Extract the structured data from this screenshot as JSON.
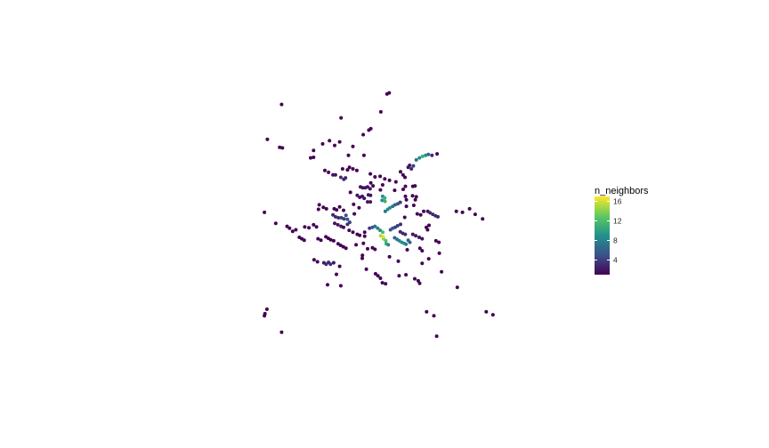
{
  "chart_data": {
    "type": "scatter",
    "title": "",
    "xlabel": "",
    "ylabel": "",
    "grid": false,
    "axes_visible": false,
    "legend": {
      "title": "n_neighbors",
      "placement": "right",
      "type": "colorbar",
      "ticks": [
        4,
        8,
        12,
        16
      ],
      "tick_labels": [
        "4",
        "8",
        "12",
        "16"
      ],
      "range": [
        1,
        17
      ],
      "colors": [
        "#440154",
        "#3b528b",
        "#21918c",
        "#5ec962",
        "#fde725"
      ]
    },
    "xlim": [
      0,
      100
    ],
    "ylim": [
      0,
      100
    ],
    "points": [
      {
        "x": 50.3,
        "y": 93.0,
        "v": 1
      },
      {
        "x": 51.2,
        "y": 93.4,
        "v": 1
      },
      {
        "x": 7.4,
        "y": 88.8,
        "v": 1
      },
      {
        "x": 47.8,
        "y": 85.8,
        "v": 1
      },
      {
        "x": 31.6,
        "y": 83.4,
        "v": 1
      },
      {
        "x": 42.9,
        "y": 78.5,
        "v": 1
      },
      {
        "x": 43.7,
        "y": 79.1,
        "v": 1
      },
      {
        "x": 40.6,
        "y": 76.7,
        "v": 1
      },
      {
        "x": 1.6,
        "y": 74.8,
        "v": 1
      },
      {
        "x": 26.9,
        "y": 74.3,
        "v": 1
      },
      {
        "x": 31.0,
        "y": 73.8,
        "v": 1
      },
      {
        "x": 24.1,
        "y": 73.0,
        "v": 1
      },
      {
        "x": 6.6,
        "y": 71.6,
        "v": 1
      },
      {
        "x": 7.7,
        "y": 71.4,
        "v": 1
      },
      {
        "x": 29.0,
        "y": 72.4,
        "v": 1
      },
      {
        "x": 36.4,
        "y": 72.0,
        "v": 1
      },
      {
        "x": 20.4,
        "y": 70.4,
        "v": 1
      },
      {
        "x": 34.6,
        "y": 68.4,
        "v": 1
      },
      {
        "x": 40.9,
        "y": 68.4,
        "v": 1
      },
      {
        "x": 19.2,
        "y": 67.4,
        "v": 1
      },
      {
        "x": 20.4,
        "y": 67.6,
        "v": 1
      },
      {
        "x": 62.2,
        "y": 66.6,
        "v": 7
      },
      {
        "x": 63.5,
        "y": 67.4,
        "v": 9
      },
      {
        "x": 64.8,
        "y": 68.0,
        "v": 11
      },
      {
        "x": 66.0,
        "y": 68.4,
        "v": 9
      },
      {
        "x": 67.1,
        "y": 68.8,
        "v": 6
      },
      {
        "x": 68.6,
        "y": 68.4,
        "v": 3
      },
      {
        "x": 70.7,
        "y": 69.0,
        "v": 1
      },
      {
        "x": 58.9,
        "y": 63.6,
        "v": 2
      },
      {
        "x": 59.5,
        "y": 64.4,
        "v": 2
      },
      {
        "x": 60.2,
        "y": 63.0,
        "v": 3
      },
      {
        "x": 61.0,
        "y": 64.2,
        "v": 4
      },
      {
        "x": 55.8,
        "y": 61.8,
        "v": 1
      },
      {
        "x": 56.8,
        "y": 60.6,
        "v": 1
      },
      {
        "x": 57.6,
        "y": 59.6,
        "v": 1
      },
      {
        "x": 25.0,
        "y": 62.4,
        "v": 1
      },
      {
        "x": 26.5,
        "y": 61.6,
        "v": 1
      },
      {
        "x": 32.2,
        "y": 63.0,
        "v": 1
      },
      {
        "x": 34.2,
        "y": 62.6,
        "v": 1
      },
      {
        "x": 35.0,
        "y": 63.6,
        "v": 1
      },
      {
        "x": 36.4,
        "y": 63.0,
        "v": 1
      },
      {
        "x": 38.0,
        "y": 62.4,
        "v": 1
      },
      {
        "x": 28.3,
        "y": 60.6,
        "v": 2
      },
      {
        "x": 29.3,
        "y": 60.6,
        "v": 2
      },
      {
        "x": 31.5,
        "y": 59.6,
        "v": 3
      },
      {
        "x": 32.7,
        "y": 58.8,
        "v": 3
      },
      {
        "x": 33.4,
        "y": 59.4,
        "v": 3
      },
      {
        "x": 43.5,
        "y": 61.0,
        "v": 1
      },
      {
        "x": 45.4,
        "y": 59.8,
        "v": 1
      },
      {
        "x": 47.5,
        "y": 60.0,
        "v": 1
      },
      {
        "x": 49.4,
        "y": 59.0,
        "v": 1
      },
      {
        "x": 51.3,
        "y": 58.4,
        "v": 1
      },
      {
        "x": 53.9,
        "y": 57.8,
        "v": 1
      },
      {
        "x": 43.7,
        "y": 57.4,
        "v": 1
      },
      {
        "x": 44.6,
        "y": 56.2,
        "v": 1
      },
      {
        "x": 48.5,
        "y": 56.6,
        "v": 1
      },
      {
        "x": 47.6,
        "y": 54.6,
        "v": 1
      },
      {
        "x": 53.4,
        "y": 54.4,
        "v": 1
      },
      {
        "x": 56.9,
        "y": 54.8,
        "v": 1
      },
      {
        "x": 57.8,
        "y": 56.0,
        "v": 1
      },
      {
        "x": 60.8,
        "y": 56.0,
        "v": 1
      },
      {
        "x": 61.7,
        "y": 56.2,
        "v": 1
      },
      {
        "x": 39.5,
        "y": 55.8,
        "v": 2
      },
      {
        "x": 40.4,
        "y": 55.4,
        "v": 2
      },
      {
        "x": 41.4,
        "y": 55.4,
        "v": 2
      },
      {
        "x": 42.4,
        "y": 55.8,
        "v": 2
      },
      {
        "x": 43.4,
        "y": 55.0,
        "v": 2
      },
      {
        "x": 35.4,
        "y": 53.6,
        "v": 1
      },
      {
        "x": 38.2,
        "y": 52.4,
        "v": 2
      },
      {
        "x": 39.2,
        "y": 51.6,
        "v": 2
      },
      {
        "x": 40.2,
        "y": 52.0,
        "v": 2
      },
      {
        "x": 41.0,
        "y": 51.2,
        "v": 2
      },
      {
        "x": 42.7,
        "y": 52.6,
        "v": 2
      },
      {
        "x": 43.6,
        "y": 52.4,
        "v": 2
      },
      {
        "x": 42.4,
        "y": 49.8,
        "v": 2
      },
      {
        "x": 43.5,
        "y": 49.8,
        "v": 2
      },
      {
        "x": 57.8,
        "y": 52.0,
        "v": 1
      },
      {
        "x": 58.2,
        "y": 50.6,
        "v": 1
      },
      {
        "x": 60.7,
        "y": 52.2,
        "v": 1
      },
      {
        "x": 62.2,
        "y": 51.8,
        "v": 1
      },
      {
        "x": 61.8,
        "y": 50.6,
        "v": 1
      },
      {
        "x": 58.2,
        "y": 48.0,
        "v": 1
      },
      {
        "x": 61.2,
        "y": 48.4,
        "v": 1
      },
      {
        "x": 48.5,
        "y": 52.0,
        "v": 9
      },
      {
        "x": 49.4,
        "y": 51.4,
        "v": 11
      },
      {
        "x": 48.3,
        "y": 50.4,
        "v": 9
      },
      {
        "x": 49.5,
        "y": 50.0,
        "v": 11
      },
      {
        "x": 49.6,
        "y": 46.0,
        "v": 7
      },
      {
        "x": 50.6,
        "y": 46.8,
        "v": 9
      },
      {
        "x": 51.5,
        "y": 47.4,
        "v": 9
      },
      {
        "x": 52.6,
        "y": 48.0,
        "v": 7
      },
      {
        "x": 53.6,
        "y": 48.6,
        "v": 6
      },
      {
        "x": 54.7,
        "y": 49.0,
        "v": 5
      },
      {
        "x": 55.7,
        "y": 49.6,
        "v": 4
      },
      {
        "x": 22.7,
        "y": 48.6,
        "v": 1
      },
      {
        "x": 22.4,
        "y": 46.8,
        "v": 1
      },
      {
        "x": 24.4,
        "y": 47.6,
        "v": 1
      },
      {
        "x": 25.6,
        "y": 47.0,
        "v": 1
      },
      {
        "x": 28.8,
        "y": 47.0,
        "v": 1
      },
      {
        "x": 29.8,
        "y": 46.6,
        "v": 1
      },
      {
        "x": 31.0,
        "y": 47.8,
        "v": 1
      },
      {
        "x": 32.6,
        "y": 46.4,
        "v": 1
      },
      {
        "x": 36.7,
        "y": 48.8,
        "v": 1
      },
      {
        "x": 38.9,
        "y": 47.4,
        "v": 1
      },
      {
        "x": 37.0,
        "y": 45.0,
        "v": 1
      },
      {
        "x": 28.3,
        "y": 44.6,
        "v": 3
      },
      {
        "x": 29.3,
        "y": 43.8,
        "v": 3
      },
      {
        "x": 30.5,
        "y": 43.4,
        "v": 3
      },
      {
        "x": 31.7,
        "y": 43.4,
        "v": 4
      },
      {
        "x": 32.8,
        "y": 43.0,
        "v": 4
      },
      {
        "x": 33.6,
        "y": 44.4,
        "v": 5
      },
      {
        "x": 34.2,
        "y": 42.8,
        "v": 5
      },
      {
        "x": 35.1,
        "y": 41.6,
        "v": 4
      },
      {
        "x": 34.2,
        "y": 40.8,
        "v": 3
      },
      {
        "x": 29.0,
        "y": 41.2,
        "v": 2
      },
      {
        "x": 30.3,
        "y": 40.6,
        "v": 2
      },
      {
        "x": 31.6,
        "y": 40.0,
        "v": 2
      },
      {
        "x": 32.6,
        "y": 39.6,
        "v": 1
      },
      {
        "x": 34.9,
        "y": 38.4,
        "v": 1
      },
      {
        "x": 36.4,
        "y": 37.6,
        "v": 1
      },
      {
        "x": 38.2,
        "y": 36.8,
        "v": 1
      },
      {
        "x": 39.2,
        "y": 36.4,
        "v": 1
      },
      {
        "x": 41.2,
        "y": 37.6,
        "v": 1
      },
      {
        "x": 41.2,
        "y": 36.0,
        "v": 1
      },
      {
        "x": 43.2,
        "y": 39.2,
        "v": 4
      },
      {
        "x": 44.4,
        "y": 39.6,
        "v": 5
      },
      {
        "x": 45.4,
        "y": 40.0,
        "v": 7
      },
      {
        "x": 46.5,
        "y": 39.2,
        "v": 8
      },
      {
        "x": 47.5,
        "y": 38.4,
        "v": 9
      },
      {
        "x": 48.6,
        "y": 37.6,
        "v": 12
      },
      {
        "x": 47.7,
        "y": 36.2,
        "v": 15
      },
      {
        "x": 48.7,
        "y": 35.8,
        "v": 16
      },
      {
        "x": 48.9,
        "y": 35.0,
        "v": 14
      },
      {
        "x": 49.8,
        "y": 34.2,
        "v": 12
      },
      {
        "x": 50.0,
        "y": 33.0,
        "v": 10
      },
      {
        "x": 50.8,
        "y": 32.6,
        "v": 8
      },
      {
        "x": 51.7,
        "y": 38.6,
        "v": 5
      },
      {
        "x": 52.6,
        "y": 39.2,
        "v": 5
      },
      {
        "x": 53.6,
        "y": 39.6,
        "v": 4
      },
      {
        "x": 54.6,
        "y": 40.2,
        "v": 4
      },
      {
        "x": 55.8,
        "y": 40.8,
        "v": 3
      },
      {
        "x": 55.7,
        "y": 37.8,
        "v": 3
      },
      {
        "x": 56.7,
        "y": 37.2,
        "v": 3
      },
      {
        "x": 57.7,
        "y": 36.8,
        "v": 3
      },
      {
        "x": 53.4,
        "y": 35.4,
        "v": 6
      },
      {
        "x": 54.4,
        "y": 34.8,
        "v": 7
      },
      {
        "x": 55.3,
        "y": 34.2,
        "v": 8
      },
      {
        "x": 56.3,
        "y": 33.6,
        "v": 9
      },
      {
        "x": 57.3,
        "y": 33.2,
        "v": 9
      },
      {
        "x": 58.0,
        "y": 32.8,
        "v": 8
      },
      {
        "x": 58.9,
        "y": 34.4,
        "v": 6
      },
      {
        "x": 59.6,
        "y": 33.6,
        "v": 6
      },
      {
        "x": 60.8,
        "y": 36.8,
        "v": 2
      },
      {
        "x": 62.0,
        "y": 36.2,
        "v": 2
      },
      {
        "x": 63.4,
        "y": 35.6,
        "v": 2
      },
      {
        "x": 64.6,
        "y": 35.0,
        "v": 2
      },
      {
        "x": 66.3,
        "y": 39.6,
        "v": 1
      },
      {
        "x": 66.8,
        "y": 38.6,
        "v": 1
      },
      {
        "x": 67.4,
        "y": 40.4,
        "v": 1
      },
      {
        "x": 57.5,
        "y": 43.6,
        "v": 1
      },
      {
        "x": 62.6,
        "y": 45.0,
        "v": 1
      },
      {
        "x": 64.0,
        "y": 44.6,
        "v": 1
      },
      {
        "x": 65.2,
        "y": 46.0,
        "v": 1
      },
      {
        "x": 66.9,
        "y": 46.0,
        "v": 2
      },
      {
        "x": 67.8,
        "y": 45.4,
        "v": 3
      },
      {
        "x": 68.9,
        "y": 44.8,
        "v": 3
      },
      {
        "x": 70.0,
        "y": 44.2,
        "v": 3
      },
      {
        "x": 71.0,
        "y": 43.8,
        "v": 3
      },
      {
        "x": 78.5,
        "y": 46.0,
        "v": 1
      },
      {
        "x": 81.0,
        "y": 45.6,
        "v": 1
      },
      {
        "x": 83.9,
        "y": 47.0,
        "v": 1
      },
      {
        "x": 86.2,
        "y": 44.8,
        "v": 1
      },
      {
        "x": 89.2,
        "y": 43.0,
        "v": 1
      },
      {
        "x": 0.4,
        "y": 45.6,
        "v": 1
      },
      {
        "x": 5.0,
        "y": 41.2,
        "v": 1
      },
      {
        "x": 9.6,
        "y": 40.0,
        "v": 1
      },
      {
        "x": 10.6,
        "y": 39.2,
        "v": 1
      },
      {
        "x": 11.9,
        "y": 38.0,
        "v": 1
      },
      {
        "x": 13.2,
        "y": 38.6,
        "v": 1
      },
      {
        "x": 16.8,
        "y": 39.8,
        "v": 1
      },
      {
        "x": 18.5,
        "y": 39.4,
        "v": 1
      },
      {
        "x": 20.4,
        "y": 40.6,
        "v": 1
      },
      {
        "x": 21.6,
        "y": 39.8,
        "v": 1
      },
      {
        "x": 14.6,
        "y": 35.6,
        "v": 1
      },
      {
        "x": 15.6,
        "y": 35.0,
        "v": 1
      },
      {
        "x": 16.6,
        "y": 34.4,
        "v": 1
      },
      {
        "x": 22.2,
        "y": 35.0,
        "v": 1
      },
      {
        "x": 23.4,
        "y": 34.4,
        "v": 1
      },
      {
        "x": 25.4,
        "y": 35.8,
        "v": 1
      },
      {
        "x": 26.4,
        "y": 35.2,
        "v": 1
      },
      {
        "x": 27.4,
        "y": 34.6,
        "v": 1
      },
      {
        "x": 28.6,
        "y": 34.2,
        "v": 1
      },
      {
        "x": 30.4,
        "y": 33.0,
        "v": 1
      },
      {
        "x": 31.4,
        "y": 32.4,
        "v": 1
      },
      {
        "x": 32.5,
        "y": 31.8,
        "v": 1
      },
      {
        "x": 33.6,
        "y": 31.2,
        "v": 1
      },
      {
        "x": 37.7,
        "y": 32.6,
        "v": 1
      },
      {
        "x": 40.7,
        "y": 33.2,
        "v": 1
      },
      {
        "x": 42.4,
        "y": 31.0,
        "v": 1
      },
      {
        "x": 44.4,
        "y": 31.4,
        "v": 1
      },
      {
        "x": 45.4,
        "y": 30.8,
        "v": 1
      },
      {
        "x": 58.5,
        "y": 30.6,
        "v": 1
      },
      {
        "x": 63.7,
        "y": 31.2,
        "v": 1
      },
      {
        "x": 64.6,
        "y": 30.2,
        "v": 1
      },
      {
        "x": 70.2,
        "y": 34.2,
        "v": 1
      },
      {
        "x": 71.4,
        "y": 33.6,
        "v": 1
      },
      {
        "x": 40.3,
        "y": 28.4,
        "v": 1
      },
      {
        "x": 40.2,
        "y": 27.2,
        "v": 1
      },
      {
        "x": 51.3,
        "y": 27.8,
        "v": 1
      },
      {
        "x": 54.9,
        "y": 26.0,
        "v": 1
      },
      {
        "x": 64.6,
        "y": 25.2,
        "v": 1
      },
      {
        "x": 67.3,
        "y": 27.0,
        "v": 1
      },
      {
        "x": 71.6,
        "y": 29.2,
        "v": 1
      },
      {
        "x": 20.6,
        "y": 26.6,
        "v": 1
      },
      {
        "x": 22.0,
        "y": 25.8,
        "v": 1
      },
      {
        "x": 24.6,
        "y": 25.4,
        "v": 2
      },
      {
        "x": 25.5,
        "y": 24.8,
        "v": 3
      },
      {
        "x": 26.5,
        "y": 25.6,
        "v": 3
      },
      {
        "x": 27.3,
        "y": 24.8,
        "v": 3
      },
      {
        "x": 28.6,
        "y": 25.4,
        "v": 2
      },
      {
        "x": 31.0,
        "y": 24.0,
        "v": 1
      },
      {
        "x": 29.7,
        "y": 20.8,
        "v": 1
      },
      {
        "x": 41.9,
        "y": 22.8,
        "v": 1
      },
      {
        "x": 45.6,
        "y": 21.0,
        "v": 1
      },
      {
        "x": 46.6,
        "y": 20.2,
        "v": 1
      },
      {
        "x": 47.6,
        "y": 19.2,
        "v": 1
      },
      {
        "x": 48.4,
        "y": 17.4,
        "v": 1
      },
      {
        "x": 49.7,
        "y": 17.0,
        "v": 1
      },
      {
        "x": 55.2,
        "y": 20.2,
        "v": 1
      },
      {
        "x": 58.0,
        "y": 20.6,
        "v": 1
      },
      {
        "x": 61.6,
        "y": 19.0,
        "v": 1
      },
      {
        "x": 63.0,
        "y": 18.2,
        "v": 1
      },
      {
        "x": 63.6,
        "y": 17.2,
        "v": 1
      },
      {
        "x": 72.5,
        "y": 21.8,
        "v": 1
      },
      {
        "x": 26.1,
        "y": 16.6,
        "v": 1
      },
      {
        "x": 31.5,
        "y": 16.2,
        "v": 1
      },
      {
        "x": 78.9,
        "y": 15.6,
        "v": 1
      },
      {
        "x": 1.4,
        "y": 6.8,
        "v": 1
      },
      {
        "x": 0.6,
        "y": 5.0,
        "v": 1
      },
      {
        "x": 0.4,
        "y": 4.2,
        "v": 1
      },
      {
        "x": 66.4,
        "y": 5.8,
        "v": 1
      },
      {
        "x": 69.4,
        "y": 4.2,
        "v": 1
      },
      {
        "x": 90.7,
        "y": 5.8,
        "v": 1
      },
      {
        "x": 93.4,
        "y": 4.6,
        "v": 1
      },
      {
        "x": 7.4,
        "y": -2.4,
        "v": 1
      },
      {
        "x": 70.5,
        "y": -4.0,
        "v": 1
      }
    ]
  }
}
